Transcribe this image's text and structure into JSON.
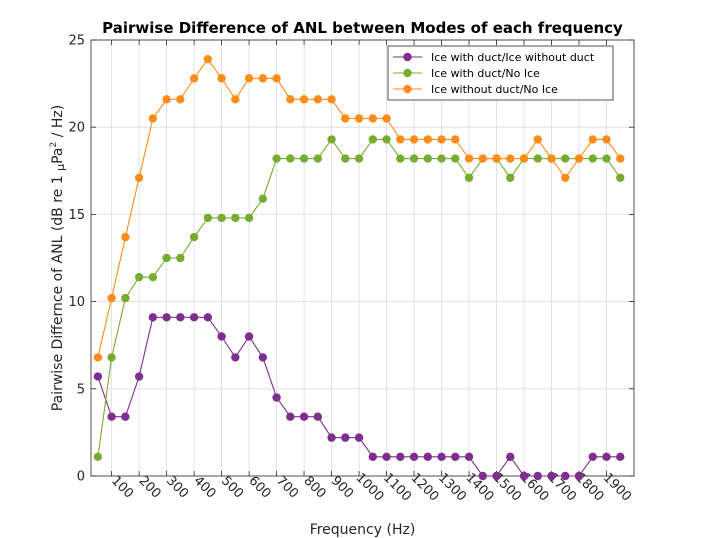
{
  "chart_data": {
    "type": "line",
    "title": "Pairwise Difference of ANL between Modes of each frequency",
    "xlabel": "Frequency (Hz)",
    "ylabel": "Pairwise Differnce of ANL (dB re 1 μPa² / Hz)",
    "ylabel_parts": {
      "main": "Pairwise Differnce of ANL (dB re 1 ",
      "mu": "μ",
      "pa": "Pa",
      "sup": "2",
      "tail": " / Hz)"
    },
    "xlim": [
      25,
      2000
    ],
    "ylim": [
      0,
      25
    ],
    "xticks": [
      100,
      200,
      300,
      400,
      500,
      600,
      700,
      800,
      900,
      1000,
      1100,
      1200,
      1300,
      1400,
      1500,
      1600,
      1700,
      1800,
      1900
    ],
    "xtick_labels": [
      "100",
      "200",
      "300",
      "400",
      "500",
      "600",
      "700",
      "800",
      "900",
      "1000",
      "1100",
      "1200",
      "1300",
      "1400",
      "1500",
      "1600",
      "1700",
      "1800",
      "1900"
    ],
    "yticks": [
      0,
      5,
      10,
      15,
      20,
      25
    ],
    "ytick_labels": [
      "0",
      "5",
      "10",
      "15",
      "20",
      "25"
    ],
    "grid": true,
    "legend_position": "top-right",
    "x": [
      50,
      100,
      150,
      200,
      250,
      300,
      350,
      400,
      450,
      500,
      550,
      600,
      650,
      700,
      750,
      800,
      850,
      900,
      950,
      1000,
      1050,
      1100,
      1150,
      1200,
      1250,
      1300,
      1350,
      1400,
      1450,
      1500,
      1550,
      1600,
      1650,
      1700,
      1750,
      1800,
      1850,
      1900,
      1950
    ],
    "series": [
      {
        "name": "Ice with duct/Ice without duct",
        "color": "#7e2f8e",
        "values": [
          5.7,
          3.4,
          3.4,
          5.7,
          9.1,
          9.1,
          9.1,
          9.1,
          9.1,
          8.0,
          6.8,
          8.0,
          6.8,
          4.5,
          3.4,
          3.4,
          3.4,
          2.2,
          2.2,
          2.2,
          1.1,
          1.1,
          1.1,
          1.1,
          1.1,
          1.1,
          1.1,
          1.1,
          0.0,
          0.0,
          1.1,
          0.0,
          0.0,
          0.0,
          0.0,
          0.0,
          1.1,
          1.1,
          1.1
        ]
      },
      {
        "name": "Ice with duct/No Ice",
        "color": "#77ac30",
        "values": [
          1.1,
          6.8,
          10.2,
          11.4,
          11.4,
          12.5,
          12.5,
          13.7,
          14.8,
          14.8,
          14.8,
          14.8,
          15.9,
          18.2,
          18.2,
          18.2,
          18.2,
          19.3,
          18.2,
          18.2,
          19.3,
          19.3,
          18.2,
          18.2,
          18.2,
          18.2,
          18.2,
          17.1,
          18.2,
          18.2,
          17.1,
          18.2,
          18.2,
          18.2,
          18.2,
          18.2,
          18.2,
          18.2,
          17.1
        ]
      },
      {
        "name": "Ice without duct/No Ice",
        "color": "#ff8c1a",
        "values": [
          6.8,
          10.2,
          13.7,
          17.1,
          20.5,
          21.6,
          21.6,
          22.8,
          23.9,
          22.8,
          21.6,
          22.8,
          22.8,
          22.8,
          21.6,
          21.6,
          21.6,
          21.6,
          20.5,
          20.5,
          20.5,
          20.5,
          19.3,
          19.3,
          19.3,
          19.3,
          19.3,
          18.2,
          18.2,
          18.2,
          18.2,
          18.2,
          19.3,
          18.2,
          17.1,
          18.2,
          19.3,
          19.3,
          18.2
        ]
      }
    ]
  }
}
